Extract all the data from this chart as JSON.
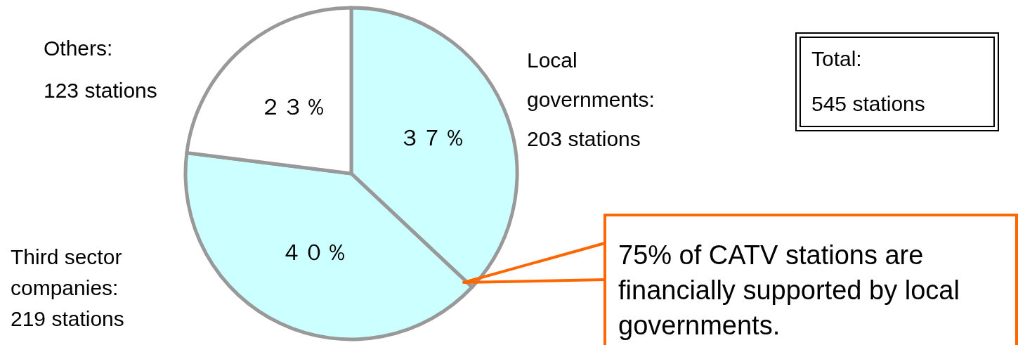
{
  "chart_data": {
    "type": "pie",
    "categories": [
      "Local governments:\n203 stations",
      "Third sector companies:\n219 stations",
      "Others:\n123 stations"
    ],
    "values": [
      37,
      40,
      23
    ],
    "colors": [
      "#ccffff",
      "#ccffff",
      "#ffffff"
    ],
    "value_labels": [
      "３７％",
      "４０％",
      "２３％"
    ],
    "annotations": [
      "Total:\n545 stations",
      "75% of CATV stations are financially supported by local governments."
    ]
  }
}
